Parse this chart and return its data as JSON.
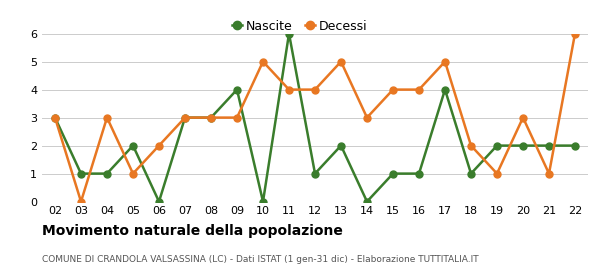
{
  "x_labels": [
    "02",
    "03",
    "04",
    "05",
    "06",
    "07",
    "08",
    "09",
    "10",
    "11",
    "12",
    "13",
    "14",
    "15",
    "16",
    "17",
    "18",
    "19",
    "20",
    "21",
    "22"
  ],
  "nascite": [
    3,
    1,
    1,
    2,
    0,
    3,
    3,
    4,
    0,
    6,
    1,
    2,
    0,
    1,
    1,
    4,
    1,
    2,
    2,
    2,
    2
  ],
  "decessi": [
    3,
    0,
    3,
    1,
    2,
    3,
    3,
    3,
    5,
    4,
    4,
    5,
    3,
    4,
    4,
    5,
    2,
    1,
    3,
    1,
    6
  ],
  "nascite_color": "#3a7d2c",
  "decessi_color": "#e87722",
  "ylim": [
    0,
    6
  ],
  "yticks": [
    0,
    1,
    2,
    3,
    4,
    5,
    6
  ],
  "title": "Movimento naturale della popolazione",
  "subtitle": "COMUNE DI CRANDOLA VALSASSINA (LC) - Dati ISTAT (1 gen-31 dic) - Elaborazione TUTTITALIA.IT",
  "legend_nascite": "Nascite",
  "legend_decessi": "Decessi",
  "background_color": "#ffffff",
  "grid_color": "#cccccc",
  "marker_size": 5,
  "line_width": 1.8
}
